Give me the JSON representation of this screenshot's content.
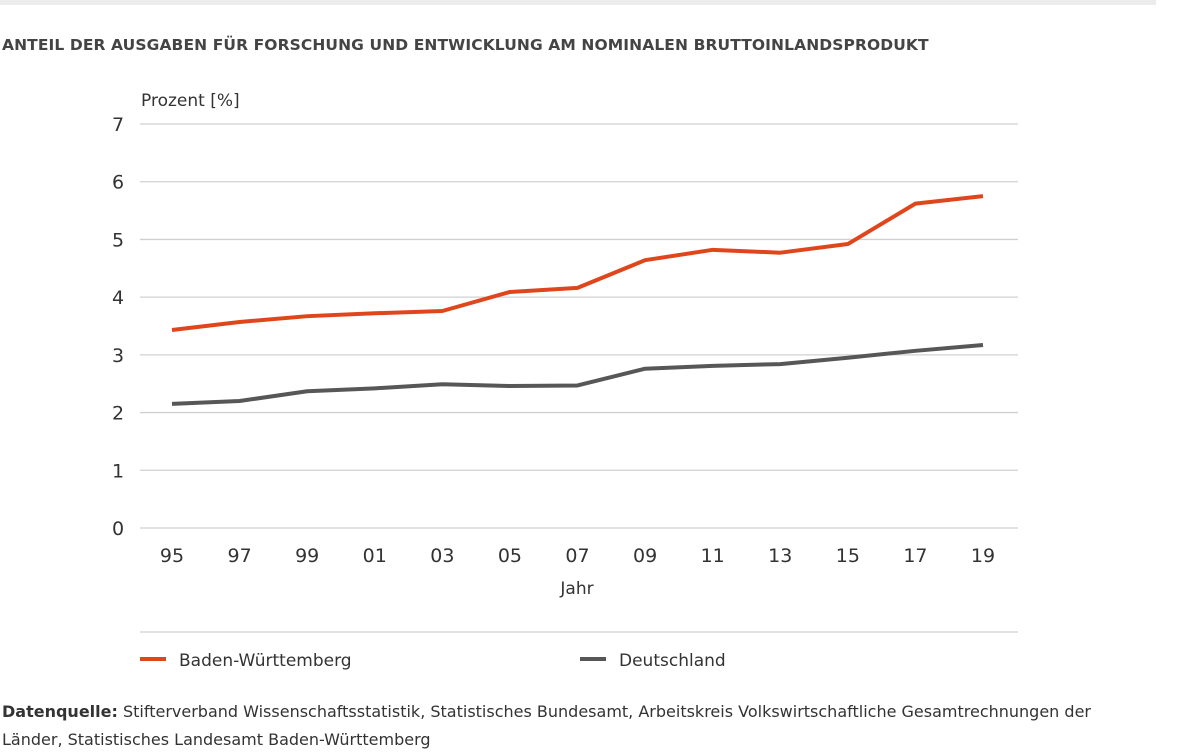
{
  "title": "ANTEIL DER AUSGABEN FÜR FORSCHUNG UND ENTWICKLUNG AM NOMINALEN BRUTTOINLANDSPRODUKT",
  "source_label": "Datenquelle:",
  "source_text": " Stifterverband Wissenschaftsstatistik, Statistisches Bundesamt, Arbeitskreis Volkswirtschaftliche Gesamtrechnungen der Länder, Statistisches Landesamt Baden-Württemberg",
  "chart_data": {
    "type": "line",
    "title": "ANTEIL DER AUSGABEN FÜR FORSCHUNG UND ENTWICKLUNG AM NOMINALEN BRUTTOINLANDSPRODUKT",
    "xlabel": "Jahr",
    "ylabel": "Prozent [%]",
    "ylim": [
      0,
      7
    ],
    "yticks": [
      "0",
      "1",
      "2",
      "3",
      "4",
      "5",
      "6",
      "7"
    ],
    "categories": [
      "95",
      "97",
      "99",
      "01",
      "03",
      "05",
      "07",
      "09",
      "11",
      "13",
      "15",
      "17",
      "19"
    ],
    "grid": true,
    "legend": "bottom",
    "series": [
      {
        "name": "Baden-Württemberg",
        "color": "#e0461c",
        "values": [
          3.43,
          3.57,
          3.67,
          3.72,
          3.76,
          4.09,
          4.16,
          4.64,
          4.82,
          4.77,
          4.92,
          5.62,
          5.75
        ]
      },
      {
        "name": "Deutschland",
        "color": "#575757",
        "values": [
          2.15,
          2.2,
          2.37,
          2.42,
          2.49,
          2.46,
          2.47,
          2.76,
          2.81,
          2.84,
          2.95,
          3.07,
          3.17
        ]
      }
    ]
  }
}
